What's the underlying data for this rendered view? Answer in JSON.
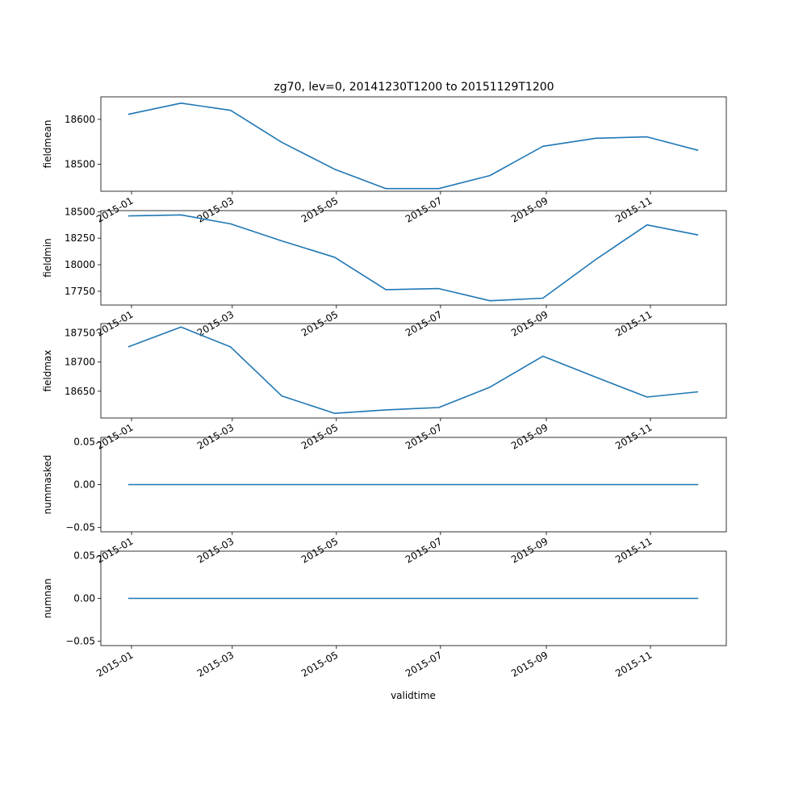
{
  "figure": {
    "title": "zg70, lev=0, 20141230T1200 to 20151129T1200",
    "xlabel": "validtime",
    "line_color": "#1f77b4"
  },
  "chart_data": [
    {
      "type": "line",
      "ylabel": "fieldmean",
      "x": [
        "2014-12-30",
        "2015-01-30",
        "2015-02-28",
        "2015-03-30",
        "2015-04-30",
        "2015-05-30",
        "2015-06-30",
        "2015-07-30",
        "2015-08-30",
        "2015-09-30",
        "2015-10-30",
        "2015-11-29"
      ],
      "values": [
        18611,
        18636,
        18620,
        18549,
        18489,
        18446,
        18446,
        18475,
        18540,
        18558,
        18561,
        18531
      ],
      "ylim": [
        18440,
        18650
      ],
      "yticks": [
        18500,
        18600
      ],
      "ytick_labels": [
        "18500",
        "18600"
      ],
      "xticks": [
        "2015-01-01",
        "2015-03-01",
        "2015-05-01",
        "2015-07-01",
        "2015-09-01",
        "2015-11-01"
      ],
      "xtick_labels": [
        "2015-01",
        "2015-03",
        "2015-05",
        "2015-07",
        "2015-09",
        "2015-11"
      ]
    },
    {
      "type": "line",
      "ylabel": "fieldmin",
      "x": [
        "2014-12-30",
        "2015-01-30",
        "2015-02-28",
        "2015-03-30",
        "2015-04-30",
        "2015-05-30",
        "2015-06-30",
        "2015-07-30",
        "2015-08-30",
        "2015-09-30",
        "2015-10-30",
        "2015-11-29"
      ],
      "values": [
        18460,
        18470,
        18385,
        18225,
        18070,
        17765,
        17775,
        17660,
        17685,
        18050,
        18375,
        18280
      ],
      "ylim": [
        17620,
        18510
      ],
      "yticks": [
        17750,
        18000,
        18250,
        18500
      ],
      "ytick_labels": [
        "17750",
        "18000",
        "18250",
        "18500"
      ],
      "xticks": [
        "2015-01-01",
        "2015-03-01",
        "2015-05-01",
        "2015-07-01",
        "2015-09-01",
        "2015-11-01"
      ],
      "xtick_labels": [
        "2015-01",
        "2015-03",
        "2015-05",
        "2015-07",
        "2015-09",
        "2015-11"
      ]
    },
    {
      "type": "line",
      "ylabel": "fieldmax",
      "x": [
        "2014-12-30",
        "2015-01-30",
        "2015-02-28",
        "2015-03-30",
        "2015-04-30",
        "2015-05-30",
        "2015-06-30",
        "2015-07-30",
        "2015-08-30",
        "2015-09-30",
        "2015-10-30",
        "2015-11-29"
      ],
      "values": [
        18726,
        18760,
        18726,
        18642,
        18612,
        18618,
        18622,
        18657,
        18710,
        18674,
        18640,
        18649
      ],
      "ylim": [
        18604,
        18766
      ],
      "yticks": [
        18650,
        18700,
        18750
      ],
      "ytick_labels": [
        "18650",
        "18700",
        "18750"
      ],
      "xticks": [
        "2015-01-01",
        "2015-03-01",
        "2015-05-01",
        "2015-07-01",
        "2015-09-01",
        "2015-11-01"
      ],
      "xtick_labels": [
        "2015-01",
        "2015-03",
        "2015-05",
        "2015-07",
        "2015-09",
        "2015-11"
      ]
    },
    {
      "type": "line",
      "ylabel": "nummasked",
      "x": [
        "2014-12-30",
        "2015-01-30",
        "2015-02-28",
        "2015-03-30",
        "2015-04-30",
        "2015-05-30",
        "2015-06-30",
        "2015-07-30",
        "2015-08-30",
        "2015-09-30",
        "2015-10-30",
        "2015-11-29"
      ],
      "values": [
        0,
        0,
        0,
        0,
        0,
        0,
        0,
        0,
        0,
        0,
        0,
        0
      ],
      "ylim": [
        -0.055,
        0.055
      ],
      "yticks": [
        -0.05,
        0.0,
        0.05
      ],
      "ytick_labels": [
        "−0.05",
        "0.00",
        "0.05"
      ],
      "xticks": [
        "2015-01-01",
        "2015-03-01",
        "2015-05-01",
        "2015-07-01",
        "2015-09-01",
        "2015-11-01"
      ],
      "xtick_labels": [
        "2015-01",
        "2015-03",
        "2015-05",
        "2015-07",
        "2015-09",
        "2015-11"
      ]
    },
    {
      "type": "line",
      "ylabel": "numnan",
      "x": [
        "2014-12-30",
        "2015-01-30",
        "2015-02-28",
        "2015-03-30",
        "2015-04-30",
        "2015-05-30",
        "2015-06-30",
        "2015-07-30",
        "2015-08-30",
        "2015-09-30",
        "2015-10-30",
        "2015-11-29"
      ],
      "values": [
        0,
        0,
        0,
        0,
        0,
        0,
        0,
        0,
        0,
        0,
        0,
        0
      ],
      "ylim": [
        -0.055,
        0.055
      ],
      "yticks": [
        -0.05,
        0.0,
        0.05
      ],
      "ytick_labels": [
        "−0.05",
        "0.00",
        "0.05"
      ],
      "xticks": [
        "2015-01-01",
        "2015-03-01",
        "2015-05-01",
        "2015-07-01",
        "2015-09-01",
        "2015-11-01"
      ],
      "xtick_labels": [
        "2015-01",
        "2015-03",
        "2015-05",
        "2015-07",
        "2015-09",
        "2015-11"
      ]
    }
  ]
}
